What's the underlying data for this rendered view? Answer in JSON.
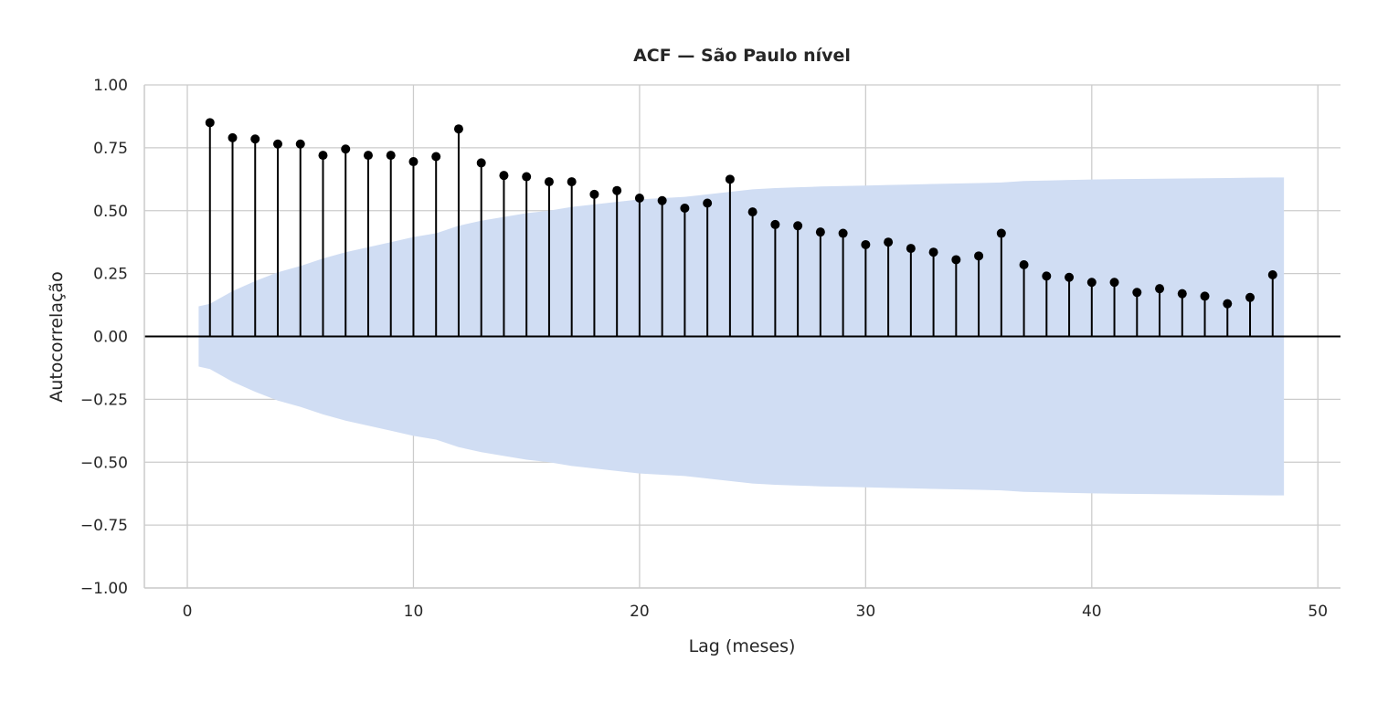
{
  "chart_data": {
    "type": "stem",
    "title": "ACF — São Paulo nível",
    "xlabel": "Lag (meses)",
    "ylabel": "Autocorrelação",
    "xlim": [
      -1.9,
      51.0
    ],
    "ylim": [
      -1.0,
      1.0
    ],
    "x_ticks": [
      0,
      10,
      20,
      30,
      40,
      50
    ],
    "y_ticks": [
      -1.0,
      -0.75,
      -0.5,
      -0.25,
      0.0,
      0.25,
      0.5,
      0.75,
      1.0
    ],
    "x_tick_labels": [
      "0",
      "10",
      "20",
      "30",
      "40",
      "50"
    ],
    "y_tick_labels": [
      "−1.00",
      "−0.75",
      "−0.50",
      "−0.25",
      "0.00",
      "0.25",
      "0.50",
      "0.75",
      "1.00"
    ],
    "grid": true,
    "series": [
      {
        "lags": [
          1,
          2,
          3,
          4,
          5,
          6,
          7,
          8,
          9,
          10,
          11,
          12,
          13,
          14,
          15,
          16,
          17,
          18,
          19,
          20,
          21,
          22,
          23,
          24,
          25,
          26,
          27,
          28,
          29,
          30,
          31,
          32,
          33,
          34,
          35,
          36,
          37,
          38,
          39,
          40,
          41,
          42,
          43,
          44,
          45,
          46,
          47,
          48
        ],
        "values": [
          0.85,
          0.79,
          0.785,
          0.765,
          0.765,
          0.72,
          0.745,
          0.72,
          0.72,
          0.695,
          0.715,
          0.825,
          0.69,
          0.64,
          0.635,
          0.615,
          0.615,
          0.565,
          0.58,
          0.55,
          0.54,
          0.51,
          0.53,
          0.625,
          0.495,
          0.445,
          0.44,
          0.415,
          0.41,
          0.365,
          0.375,
          0.35,
          0.335,
          0.305,
          0.32,
          0.41,
          0.285,
          0.24,
          0.235,
          0.215,
          0.215,
          0.175,
          0.19,
          0.17,
          0.16,
          0.13,
          0.155,
          0.245
        ]
      }
    ],
    "confidence_band": {
      "lags": [
        0.5,
        1,
        2,
        3,
        4,
        5,
        6,
        7,
        8,
        9,
        10,
        11,
        12,
        13,
        14,
        15,
        16,
        17,
        18,
        19,
        20,
        21,
        22,
        23,
        24,
        25,
        26,
        27,
        28,
        29,
        30,
        31,
        32,
        33,
        34,
        35,
        36,
        37,
        38,
        39,
        40,
        41,
        42,
        43,
        44,
        45,
        46,
        47,
        48,
        48.5
      ],
      "upper": [
        0.12,
        0.13,
        0.18,
        0.22,
        0.255,
        0.28,
        0.31,
        0.335,
        0.355,
        0.375,
        0.395,
        0.41,
        0.44,
        0.46,
        0.475,
        0.49,
        0.5,
        0.515,
        0.525,
        0.535,
        0.545,
        0.55,
        0.555,
        0.565,
        0.575,
        0.585,
        0.59,
        0.593,
        0.596,
        0.598,
        0.6,
        0.602,
        0.604,
        0.606,
        0.608,
        0.61,
        0.612,
        0.618,
        0.62,
        0.622,
        0.624,
        0.625,
        0.626,
        0.627,
        0.628,
        0.629,
        0.63,
        0.631,
        0.632,
        0.632
      ]
    },
    "colors": {
      "stem": "#000000",
      "marker": "#000000",
      "band": "#d0ddf3",
      "grid": "#cccccc",
      "zero_line": "#000000",
      "axis_spine": "#cccccc"
    }
  }
}
